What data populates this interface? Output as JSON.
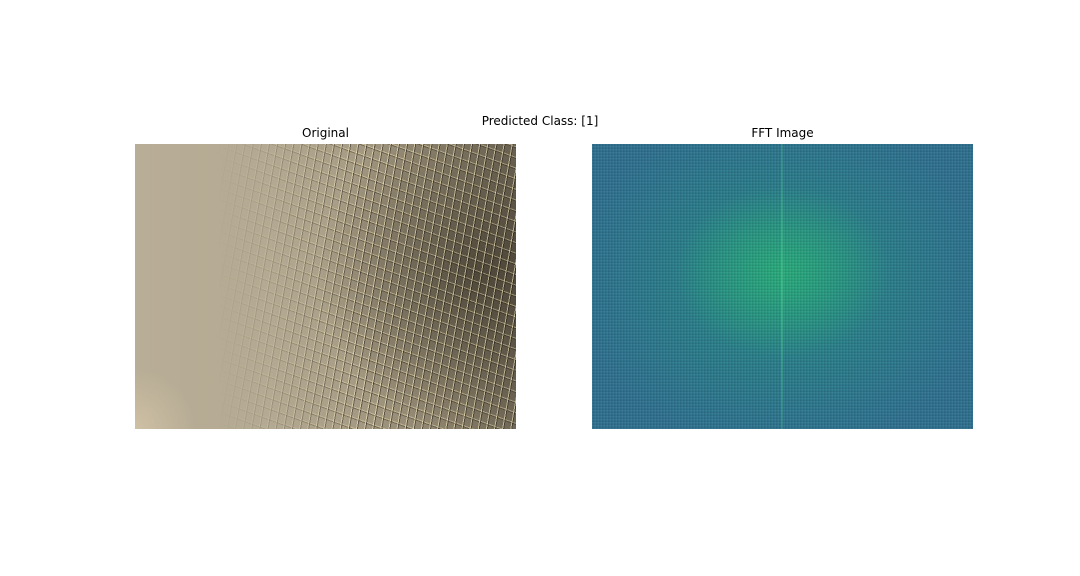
{
  "figure": {
    "suptitle": "Predicted Class: [1]"
  },
  "panels": [
    {
      "title": "Original",
      "image_description": "micrograph"
    },
    {
      "title": "FFT Image",
      "image_description": "fft-magnitude-spectrum",
      "colormap": "viridis"
    }
  ]
}
